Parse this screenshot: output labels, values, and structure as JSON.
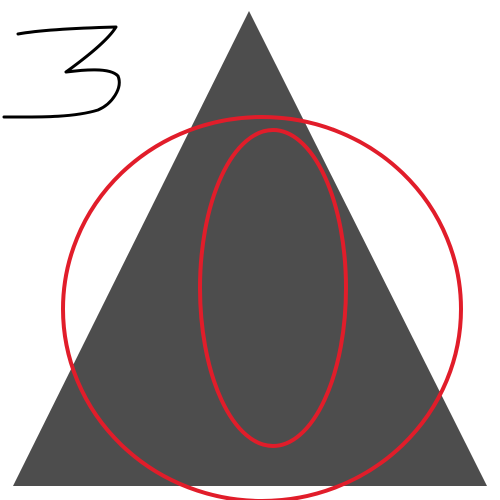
{
  "drawing": {
    "background": "#ffffff",
    "handwritten_mark": {
      "label": "3",
      "color": "#000000"
    },
    "triangle": {
      "fill": "#4d4d4d"
    },
    "circle": {
      "stroke": "#e11d2a"
    },
    "ellipse": {
      "stroke": "#e11d2a"
    }
  }
}
